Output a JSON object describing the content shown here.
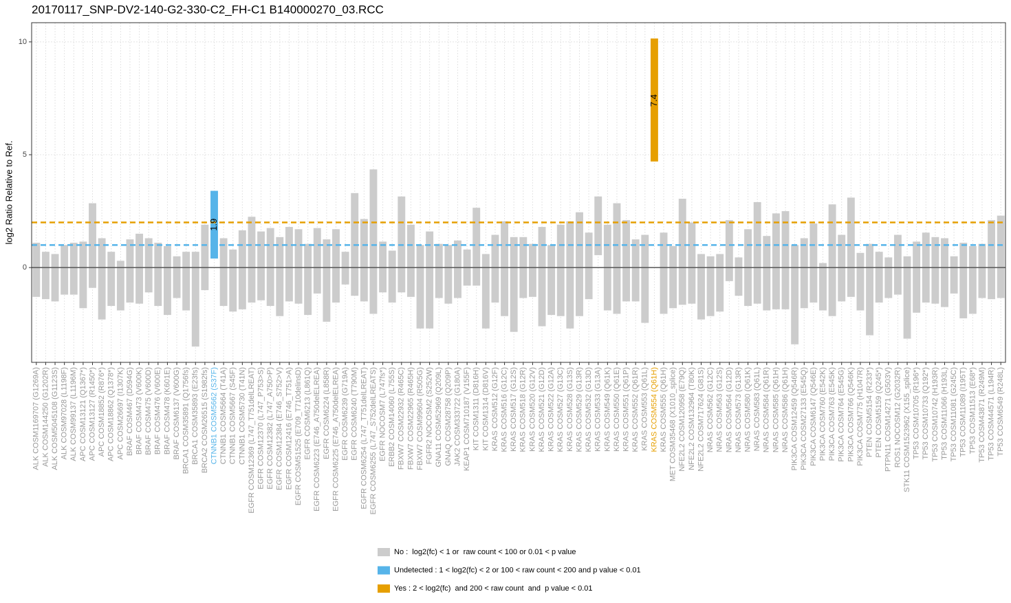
{
  "chart_data": {
    "type": "range_bar",
    "title": "20170117_SNP-DV2-140-G2-330-C2_FH-C1 B140000270_03.RCC",
    "y_label": "log2 Ratio Relative to Ref.",
    "ylim": [
      -4.2,
      10.85
    ],
    "yticks": [
      0,
      5,
      10
    ],
    "grid": true,
    "legend": "bottom",
    "reference_lines": [
      {
        "value": 2,
        "color": "#e69f00",
        "style": "dashed"
      },
      {
        "value": 1,
        "color": "#56b4e9",
        "style": "dashed"
      },
      {
        "value": 0,
        "color": "#555555",
        "style": "solid"
      }
    ],
    "categories": [
      "ALK COSM1169707 (G1269A)",
      "ALK COSM144250 (G1202R)",
      "ALK COSM5045108 (G1123S)",
      "ALK COSM97028 (L1198F)",
      "ALK COSM99137 (L1196M)",
      "APC COSM13121 (Q1367*)",
      "APC COSM13127 (R1450*)",
      "APC COSM18852 (R876*)",
      "APC COSM18862 (Q1378*)",
      "APC COSM26697 (I1307K)",
      "BRAF COSM467 (D594G)",
      "BRAF COSM473 (V600K)",
      "BRAF COSM475 (V600D)",
      "BRAF COSM476 (V600E)",
      "BRAF COSM478 (K601E)",
      "BRAF COSM6137 (V600G)",
      "BRCA1 COSM35891 (Q1756fs)",
      "BRCA1 COSM35893 (E23fs)",
      "BRCA2 COSM26515 (S1982fs)",
      "CTNNB1 COSM5662 (S37F)",
      "CTNNB1 COSM5664 (T41A)",
      "CTNNB1 COSM5667 (S45F)",
      "CTNNB1 COSM5730 (T41N)",
      "EGFR COSM12369 (L747_T751delLREAT)",
      "EGFR COSM12370 (L747_P753>S)",
      "EGFR COSM12382 (L747_A750>P)",
      "EGFR COSM12384 (E746_S752>V)",
      "EGFR COSM12416 (E746_T751>A)",
      "EGFR COSM51525 (E709_T710delinsD)",
      "EGFR COSM6213 (L861Q)",
      "EGFR COSM6223 (E746_A750delELREA)",
      "EGFR COSM6224 (L858R)",
      "EGFR COSM6225 (E746_A750delELREA)",
      "EGFR COSM6239 (G719A)",
      "EGFR COSM6240 (T790M)",
      "EGFR COSM6254 (L747_T751delLREAT)",
      "EGFR COSM6255 (L747_S752delLREATS)",
      "EGFR NOCOSM7 (L747fs*)",
      "ERBB2 COSM14060 (L755S)",
      "FBXW7 COSM22932 (R465C)",
      "FBXW7 COSM22965 (R465H)",
      "FBXW7 COSM99604 (R505G)",
      "FGFR2 NOCOSM2 (S252W)",
      "GNA11 COSM52969 (Q209L)",
      "GNAQ COSM28758 (Q209P)",
      "JAK2 COSM333722 (G180A)",
      "KEAP1 COSM710187 (V155F)",
      "KIT COSM1311 (D816H)",
      "KIT COSM1314 (D816V)",
      "KRAS COSM512 (G12F)",
      "KRAS COSM516 (G12C)",
      "KRAS COSM517 (G12S)",
      "KRAS COSM518 (G12R)",
      "KRAS COSM520 (G12V)",
      "KRAS COSM521 (G12D)",
      "KRAS COSM522 (G12A)",
      "KRAS COSM527 (G13C)",
      "KRAS COSM528 (G13S)",
      "KRAS COSM529 (G13R)",
      "KRAS COSM532 (G13D)",
      "KRAS COSM533 (G13A)",
      "KRAS COSM549 (Q61K)",
      "KRAS COSM550 (Q61E)",
      "KRAS COSM551 (Q61P)",
      "KRAS COSM552 (Q61R)",
      "KRAS COSM553 (Q61L)",
      "KRAS COSM554 (Q61H)",
      "KRAS COSM555 (Q61H)",
      "MET COSM35468 (X1010_splice)",
      "NFE2L2 COSM120958 (E79Q)",
      "NFE2L2 COSM132964 (T80K)",
      "NFE2L2 COSM717624 (G81S)",
      "NRAS COSM562 (G12C)",
      "NRAS COSM563 (G12S)",
      "NRAS COSM564 (G12D)",
      "NRAS COSM573 (G13R)",
      "NRAS COSM580 (Q61K)",
      "NRAS COSM583 (Q61L)",
      "NRAS COSM584 (Q61R)",
      "NRAS COSM585 (Q61H)",
      "NRAS COSM586 (Q61H)",
      "PIK3CA COSM12459 (Q546R)",
      "PIK3CA COSM27133 (E545Q)",
      "PIK3CA COSM6147 (Q546E)",
      "PIK3CA COSM760 (E542K)",
      "PIK3CA COSM763 (E545K)",
      "PIK3CA COSM764 (E545G)",
      "PIK3CA COSM766 (Q546K)",
      "PIK3CA COSM775 (H1047R)",
      "PTEN COSM5154 (R233*)",
      "PTEN COSM5159 (Q245*)",
      "PTPN11 COSM14271 (G503V)",
      "ROS1 NOCOSM12 (G2032R)",
      "STK11 COSM1523962 (X155_splice)",
      "TP53 COSM10705 (R196*)",
      "TP53 COSM10733 (Q192*)",
      "TP53 COSM10742 (H193R)",
      "TP53 COSM11066 (H193L)",
      "TP53 COSM11081 (G245C)",
      "TP53 COSM11089 (I195T)",
      "TP53 COSM11513 (E68*)",
      "TP53 COSM43871 (R249M)",
      "TP53 COSM44571 (L194R)",
      "TP53 COSM6549 (R248L)"
    ],
    "series": [
      {
        "name": "No :  log2(fc) < 1 or  raw count < 100 or 0.01 < p value",
        "color": "#cccccc",
        "label_color": "#999999",
        "low": [
          -1.3,
          -1.4,
          -1.5,
          -1.2,
          -1.2,
          -1.8,
          -0.9,
          -2.3,
          -1.7,
          -1.9,
          -1.55,
          -1.6,
          -1.1,
          -1.7,
          -2.1,
          -1.35,
          -1.9,
          -3.5,
          -1.0,
          null,
          -1.7,
          -1.95,
          -1.85,
          -1.55,
          -1.45,
          -1.7,
          -2.15,
          -1.5,
          -1.6,
          -2.1,
          -1.15,
          -2.4,
          -1.55,
          -0.75,
          -1.25,
          -1.5,
          -2.05,
          -1.1,
          -1.55,
          -1.1,
          -1.3,
          -2.7,
          -2.7,
          -1.35,
          -1.6,
          -1.35,
          -0.8,
          -0.8,
          -2.7,
          -1.55,
          -2.15,
          -2.85,
          -1.35,
          -1.3,
          -2.6,
          -2.1,
          -2.15,
          -2.7,
          -2.15,
          -1.4,
          0.55,
          -1.9,
          -2.05,
          -1.5,
          -1.5,
          -2.45,
          null,
          -2.05,
          -1.8,
          -1.65,
          -1.6,
          -2.3,
          -2.15,
          -1.95,
          -0.6,
          -1.25,
          -1.7,
          -1.6,
          -1.9,
          -1.85,
          -1.85,
          -3.4,
          -1.8,
          -1.55,
          -1.9,
          -2.15,
          -1.5,
          -1.3,
          -1.9,
          -3.0,
          -1.55,
          -1.35,
          -1.2,
          -3.15,
          -2.0,
          -1.55,
          -1.6,
          -1.75,
          -1.15,
          -2.25,
          -2.05,
          -1.35,
          -1.4,
          -1.35
        ],
        "high": [
          1.1,
          0.7,
          0.6,
          1.0,
          1.1,
          1.15,
          2.85,
          1.3,
          0.7,
          0.3,
          1.25,
          1.5,
          1.3,
          1.1,
          0.95,
          0.5,
          0.7,
          0.7,
          1.9,
          null,
          1.3,
          0.8,
          1.65,
          2.25,
          1.6,
          1.75,
          1.35,
          1.8,
          1.7,
          1.05,
          1.75,
          1.25,
          1.7,
          0.7,
          3.3,
          2.15,
          4.35,
          1.15,
          0.75,
          3.15,
          1.9,
          1.0,
          1.6,
          1.05,
          1.0,
          1.2,
          0.8,
          2.65,
          0.6,
          1.45,
          2.05,
          1.35,
          1.35,
          1.05,
          1.8,
          1.0,
          1.9,
          2.05,
          2.45,
          1.55,
          3.15,
          1.9,
          2.85,
          2.1,
          1.25,
          1.45,
          null,
          1.55,
          0.95,
          3.05,
          2.0,
          0.6,
          0.5,
          0.6,
          2.1,
          0.45,
          1.7,
          2.9,
          1.4,
          2.4,
          2.5,
          1.0,
          1.3,
          1.95,
          0.2,
          2.8,
          1.45,
          3.1,
          0.65,
          1.05,
          0.7,
          0.45,
          1.45,
          0.5,
          1.15,
          1.55,
          1.35,
          1.3,
          0.5,
          1.1,
          0.95,
          1.05,
          2.1,
          2.3
        ]
      },
      {
        "name": "Undetected : 1 < log2(fc) < 2 or 100 < raw count < 200 and p value < 0.01",
        "color": "#56b4e9",
        "label_color": "#56b4e9",
        "low": [
          null,
          null,
          null,
          null,
          null,
          null,
          null,
          null,
          null,
          null,
          null,
          null,
          null,
          null,
          null,
          null,
          null,
          null,
          null,
          0.4,
          null,
          null,
          null,
          null,
          null,
          null,
          null,
          null,
          null,
          null,
          null,
          null,
          null,
          null,
          null,
          null,
          null,
          null,
          null,
          null,
          null,
          null,
          null,
          null,
          null,
          null,
          null,
          null,
          null,
          null,
          null,
          null,
          null,
          null,
          null,
          null,
          null,
          null,
          null,
          null,
          null,
          null,
          null,
          null,
          null,
          null,
          null,
          null,
          null,
          null,
          null,
          null,
          null,
          null,
          null,
          null,
          null,
          null,
          null,
          null,
          null,
          null,
          null,
          null,
          null,
          null,
          null,
          null,
          null,
          null,
          null,
          null,
          null,
          null,
          null,
          null,
          null,
          null,
          null,
          null,
          null,
          null,
          null,
          null
        ],
        "high": [
          null,
          null,
          null,
          null,
          null,
          null,
          null,
          null,
          null,
          null,
          null,
          null,
          null,
          null,
          null,
          null,
          null,
          null,
          null,
          3.4,
          null,
          null,
          null,
          null,
          null,
          null,
          null,
          null,
          null,
          null,
          null,
          null,
          null,
          null,
          null,
          null,
          null,
          null,
          null,
          null,
          null,
          null,
          null,
          null,
          null,
          null,
          null,
          null,
          null,
          null,
          null,
          null,
          null,
          null,
          null,
          null,
          null,
          null,
          null,
          null,
          null,
          null,
          null,
          null,
          null,
          null,
          null,
          null,
          null,
          null,
          null,
          null,
          null,
          null,
          null,
          null,
          null,
          null,
          null,
          null,
          null,
          null,
          null,
          null,
          null,
          null,
          null,
          null,
          null,
          null,
          null,
          null,
          null,
          null,
          null,
          null,
          null,
          null,
          null,
          null,
          null,
          null,
          null,
          null
        ],
        "values": [
          null,
          null,
          null,
          null,
          null,
          null,
          null,
          null,
          null,
          null,
          null,
          null,
          null,
          null,
          null,
          null,
          null,
          null,
          null,
          1.9,
          null,
          null,
          null,
          null,
          null,
          null,
          null,
          null,
          null,
          null,
          null,
          null,
          null,
          null,
          null,
          null,
          null,
          null,
          null,
          null,
          null,
          null,
          null,
          null,
          null,
          null,
          null,
          null,
          null,
          null,
          null,
          null,
          null,
          null,
          null,
          null,
          null,
          null,
          null,
          null,
          null,
          null,
          null,
          null,
          null,
          null,
          null,
          null,
          null,
          null,
          null,
          null,
          null,
          null,
          null,
          null,
          null,
          null,
          null,
          null,
          null,
          null,
          null,
          null,
          null,
          null,
          null,
          null,
          null,
          null,
          null,
          null,
          null,
          null,
          null,
          null,
          null,
          null,
          null,
          null,
          null,
          null,
          null,
          null
        ]
      },
      {
        "name": "Yes : 2 < log2(fc)  and 200 < raw count  and  p value < 0.01",
        "color": "#e69f00",
        "label_color": "#e69f00",
        "low": [
          null,
          null,
          null,
          null,
          null,
          null,
          null,
          null,
          null,
          null,
          null,
          null,
          null,
          null,
          null,
          null,
          null,
          null,
          null,
          null,
          null,
          null,
          null,
          null,
          null,
          null,
          null,
          null,
          null,
          null,
          null,
          null,
          null,
          null,
          null,
          null,
          null,
          null,
          null,
          null,
          null,
          null,
          null,
          null,
          null,
          null,
          null,
          null,
          null,
          null,
          null,
          null,
          null,
          null,
          null,
          null,
          null,
          null,
          null,
          null,
          null,
          null,
          null,
          null,
          null,
          null,
          4.7,
          null,
          null,
          null,
          null,
          null,
          null,
          null,
          null,
          null,
          null,
          null,
          null,
          null,
          null,
          null,
          null,
          null,
          null,
          null,
          null,
          null,
          null,
          null,
          null,
          null,
          null,
          null,
          null,
          null,
          null,
          null,
          null,
          null,
          null,
          null,
          null,
          null
        ],
        "high": [
          null,
          null,
          null,
          null,
          null,
          null,
          null,
          null,
          null,
          null,
          null,
          null,
          null,
          null,
          null,
          null,
          null,
          null,
          null,
          null,
          null,
          null,
          null,
          null,
          null,
          null,
          null,
          null,
          null,
          null,
          null,
          null,
          null,
          null,
          null,
          null,
          null,
          null,
          null,
          null,
          null,
          null,
          null,
          null,
          null,
          null,
          null,
          null,
          null,
          null,
          null,
          null,
          null,
          null,
          null,
          null,
          null,
          null,
          null,
          null,
          null,
          null,
          null,
          null,
          null,
          null,
          10.15,
          null,
          null,
          null,
          null,
          null,
          null,
          null,
          null,
          null,
          null,
          null,
          null,
          null,
          null,
          null,
          null,
          null,
          null,
          null,
          null,
          null,
          null,
          null,
          null,
          null,
          null,
          null,
          null,
          null,
          null,
          null,
          null,
          null,
          null,
          null,
          null,
          null
        ],
        "values": [
          null,
          null,
          null,
          null,
          null,
          null,
          null,
          null,
          null,
          null,
          null,
          null,
          null,
          null,
          null,
          null,
          null,
          null,
          null,
          null,
          null,
          null,
          null,
          null,
          null,
          null,
          null,
          null,
          null,
          null,
          null,
          null,
          null,
          null,
          null,
          null,
          null,
          null,
          null,
          null,
          null,
          null,
          null,
          null,
          null,
          null,
          null,
          null,
          null,
          null,
          null,
          null,
          null,
          null,
          null,
          null,
          null,
          null,
          null,
          null,
          null,
          null,
          null,
          null,
          null,
          null,
          7.4,
          null,
          null,
          null,
          null,
          null,
          null,
          null,
          null,
          null,
          null,
          null,
          null,
          null,
          null,
          null,
          null,
          null,
          null,
          null,
          null,
          null,
          null,
          null,
          null,
          null,
          null,
          null,
          null,
          null,
          null,
          null,
          null,
          null,
          null,
          null,
          null,
          null
        ]
      }
    ]
  }
}
